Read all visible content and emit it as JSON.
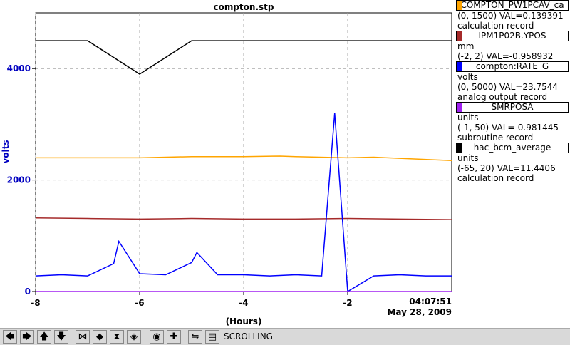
{
  "chart_data": {
    "type": "line",
    "title": "compton.stp",
    "xlabel": "(Hours)",
    "ylabel": "volts",
    "x_range": [
      -8,
      0
    ],
    "x_ticks": [
      "-8",
      "-6",
      "-4",
      "-2"
    ],
    "y_range": [
      0,
      5000
    ],
    "y_ticks": [
      "0",
      "2000",
      "4000"
    ],
    "end_time": "04:07:51",
    "end_date": "May 28, 2009",
    "grid": true,
    "legend_position": "right",
    "series": [
      {
        "name": "COMPTON_PW1PCAV_ca",
        "color": "#ffa500",
        "range": "(0, 1500)",
        "value_text": "VAL=0.139391",
        "record": "calculation record",
        "x": [
          -8,
          -7,
          -6,
          -5,
          -4,
          -3.3,
          -3,
          -2,
          -1.5,
          -1,
          0
        ],
        "y": [
          2400,
          2400,
          2400,
          2420,
          2420,
          2430,
          2420,
          2400,
          2410,
          2390,
          2350
        ]
      },
      {
        "name": "IPM1P02B.YPOS",
        "color": "#a52a2a",
        "units": "mm",
        "range": "(-2, 2)",
        "value_text": "VAL=-0.958932",
        "x": [
          -8,
          -7,
          -6,
          -5,
          -4,
          -3,
          -2,
          -1,
          0
        ],
        "y": [
          1320,
          1310,
          1300,
          1310,
          1300,
          1300,
          1310,
          1300,
          1290
        ]
      },
      {
        "name": "compton:RATE_G",
        "color": "#0000ff",
        "units": "volts",
        "range": "(0, 5000)",
        "value_text": "VAL=23.7544",
        "record": "analog output record",
        "x": [
          -8,
          -7.5,
          -7,
          -6.5,
          -6.4,
          -6,
          -5.5,
          -5,
          -4.9,
          -4.5,
          -4,
          -3.5,
          -3,
          -2.5,
          -2.25,
          -2,
          -1.5,
          -1,
          -0.5,
          0
        ],
        "y": [
          280,
          300,
          280,
          500,
          900,
          320,
          300,
          520,
          700,
          300,
          300,
          280,
          300,
          280,
          3200,
          0,
          280,
          300,
          280,
          280
        ]
      },
      {
        "name": "SMRPOSA",
        "color": "#a020f0",
        "units": "units",
        "range": "(-1, 50)",
        "value_text": "VAL=-0.981445",
        "record": "subroutine record",
        "x": [
          -8,
          0
        ],
        "y": [
          0,
          0
        ]
      },
      {
        "name": "hac_bcm_average",
        "color": "#000000",
        "units": "units",
        "range": "(-65, 20)",
        "value_text": "VAL=11.4406",
        "record": "calculation record",
        "x": [
          -8,
          -7,
          -6,
          -5,
          -4,
          -3,
          -2,
          -1,
          0
        ],
        "y": [
          4500,
          4500,
          3900,
          4500,
          4500,
          4500,
          4500,
          4500,
          4500
        ]
      }
    ]
  },
  "toolbar": {
    "status": "SCROLLING",
    "buttons": [
      {
        "icon": "left-arrow-icon",
        "glyph": "🡄"
      },
      {
        "icon": "right-arrow-icon",
        "glyph": "🡆"
      },
      {
        "icon": "up-arrow-icon",
        "glyph": "🡅"
      },
      {
        "icon": "down-arrow-icon",
        "glyph": "🡇"
      },
      {
        "icon": "zoom-in-horizontal-icon",
        "glyph": "⋈"
      },
      {
        "icon": "zoom-out-horizontal-icon",
        "glyph": "◆"
      },
      {
        "icon": "zoom-in-vertical-icon",
        "glyph": "⧗"
      },
      {
        "icon": "zoom-out-vertical-icon",
        "glyph": "◈"
      },
      {
        "icon": "center-icon",
        "glyph": "◉"
      },
      {
        "icon": "crosshair-icon",
        "glyph": "✚"
      },
      {
        "icon": "autoscale-icon",
        "glyph": "⇋"
      },
      {
        "icon": "scroll-icon",
        "glyph": "▤"
      }
    ]
  }
}
